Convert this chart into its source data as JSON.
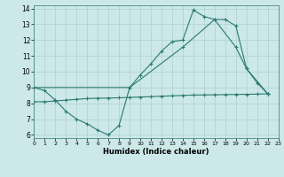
{
  "bg_color": "#cce8e8",
  "grid_color": "#b0d0d0",
  "line_color": "#2a7a70",
  "line1_x": [
    0,
    1,
    2,
    3,
    4,
    5,
    6,
    7,
    8,
    9,
    10,
    11,
    12,
    13,
    14,
    15,
    16,
    17,
    18,
    19,
    20,
    21,
    22
  ],
  "line1_y": [
    9.0,
    8.8,
    8.2,
    7.5,
    7.0,
    6.7,
    6.3,
    6.0,
    6.6,
    9.0,
    9.8,
    10.5,
    11.3,
    11.9,
    12.0,
    13.9,
    13.5,
    13.3,
    13.3,
    12.9,
    10.2,
    9.3,
    8.6
  ],
  "line2_x": [
    0,
    1,
    2,
    3,
    4,
    5,
    6,
    7,
    8,
    9,
    10,
    11,
    12,
    13,
    14,
    15,
    16,
    17,
    18,
    19,
    20,
    21,
    22
  ],
  "line2_y": [
    8.1,
    8.1,
    8.15,
    8.2,
    8.25,
    8.3,
    8.32,
    8.33,
    8.35,
    8.37,
    8.4,
    8.42,
    8.45,
    8.47,
    8.5,
    8.52,
    8.53,
    8.54,
    8.55,
    8.56,
    8.57,
    8.58,
    8.6
  ],
  "line3_x": [
    0,
    9,
    14,
    17,
    19,
    20,
    22
  ],
  "line3_y": [
    9.0,
    9.0,
    11.55,
    13.3,
    11.55,
    10.2,
    8.6
  ],
  "xlim": [
    0,
    23
  ],
  "ylim": [
    5.8,
    14.2
  ],
  "xticks": [
    0,
    1,
    2,
    3,
    4,
    5,
    6,
    7,
    8,
    9,
    10,
    11,
    12,
    13,
    14,
    15,
    16,
    17,
    18,
    19,
    20,
    21,
    22,
    23
  ],
  "yticks": [
    6,
    7,
    8,
    9,
    10,
    11,
    12,
    13,
    14
  ],
  "xlabel": "Humidex (Indice chaleur)"
}
